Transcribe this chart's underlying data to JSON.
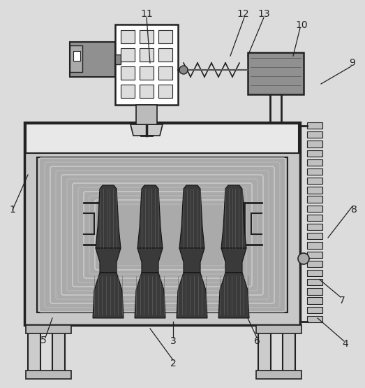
{
  "bg_color": "#dcdcdc",
  "line_color": "#222222",
  "dark_gray": "#555555",
  "medium_gray": "#888888",
  "light_gray": "#cccccc",
  "white": "#ffffff",
  "chamber_bg": "#b0b0b0",
  "coil_light": "#d8d8d8",
  "coil_dark": "#909090",
  "flange_dark": "#404040",
  "label_fontsize": 10
}
